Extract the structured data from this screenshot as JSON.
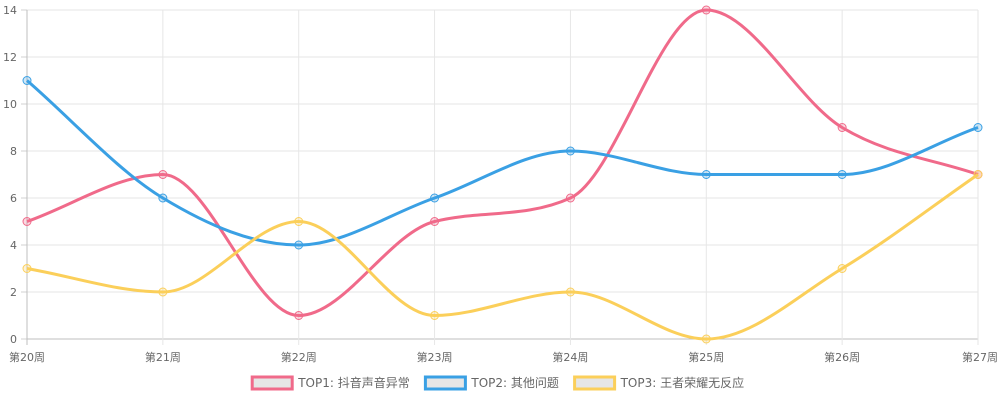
{
  "chart_data": {
    "type": "line",
    "categories": [
      "第20周",
      "第21周",
      "第22周",
      "第23周",
      "第24周",
      "第25周",
      "第26周",
      "第27周"
    ],
    "ylim": [
      0,
      14
    ],
    "yticks": [
      0,
      2,
      4,
      6,
      8,
      10,
      12,
      14
    ],
    "grid": true,
    "legend_position": "bottom",
    "series": [
      {
        "name": "TOP1: 抖音声音异常",
        "color": "#f06a8a",
        "values": [
          5,
          7,
          1,
          5,
          6,
          14,
          9,
          7
        ]
      },
      {
        "name": "TOP2: 其他问题",
        "color": "#3aa0e4",
        "values": [
          11,
          6,
          4,
          6,
          8,
          7,
          7,
          9
        ]
      },
      {
        "name": "TOP3: 王者荣耀无反应",
        "color": "#fbcf5a",
        "values": [
          3,
          2,
          5,
          1,
          2,
          0,
          3,
          7
        ]
      }
    ]
  }
}
